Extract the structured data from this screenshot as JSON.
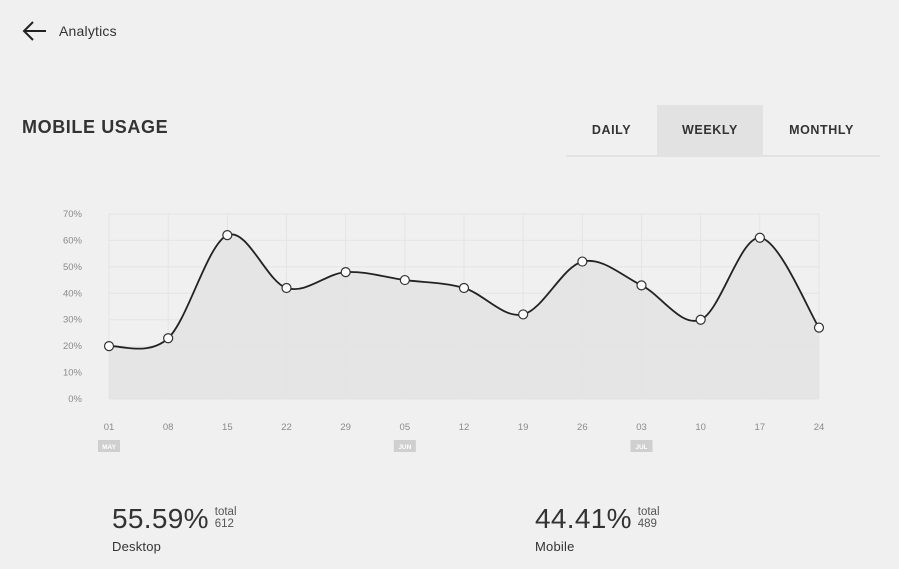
{
  "header": {
    "back_label": "Analytics"
  },
  "page": {
    "title": "MOBILE USAGE"
  },
  "tabs": [
    {
      "label": "DAILY",
      "active": false
    },
    {
      "label": "WEEKLY",
      "active": true
    },
    {
      "label": "MONTHLY",
      "active": false
    }
  ],
  "chart_data": {
    "type": "area",
    "x": [
      "01",
      "08",
      "15",
      "22",
      "29",
      "05",
      "12",
      "19",
      "26",
      "03",
      "10",
      "17",
      "24"
    ],
    "month_markers": [
      {
        "label": "MAY",
        "at": "01"
      },
      {
        "label": "JUN",
        "at": "05"
      },
      {
        "label": "JUL",
        "at": "03"
      }
    ],
    "series": [
      {
        "values": [
          20,
          23,
          62,
          42,
          48,
          45,
          42,
          32,
          52,
          43,
          30,
          61,
          27
        ]
      }
    ],
    "yticks": [
      "70%",
      "60%",
      "50%",
      "40%",
      "30%",
      "20%",
      "10%",
      "0%"
    ],
    "ylim": [
      0,
      70
    ],
    "grid": true,
    "colors": {
      "line": "#222222",
      "fill": "#e3e3e3",
      "grid": "#e4e4e4",
      "marker_fill": "#ffffff"
    }
  },
  "stats": {
    "desktop": {
      "percent": "55.59%",
      "total_label": "total",
      "total_value": "612",
      "label": "Desktop"
    },
    "mobile": {
      "percent": "44.41%",
      "total_label": "total",
      "total_value": "489",
      "label": "Mobile"
    }
  }
}
